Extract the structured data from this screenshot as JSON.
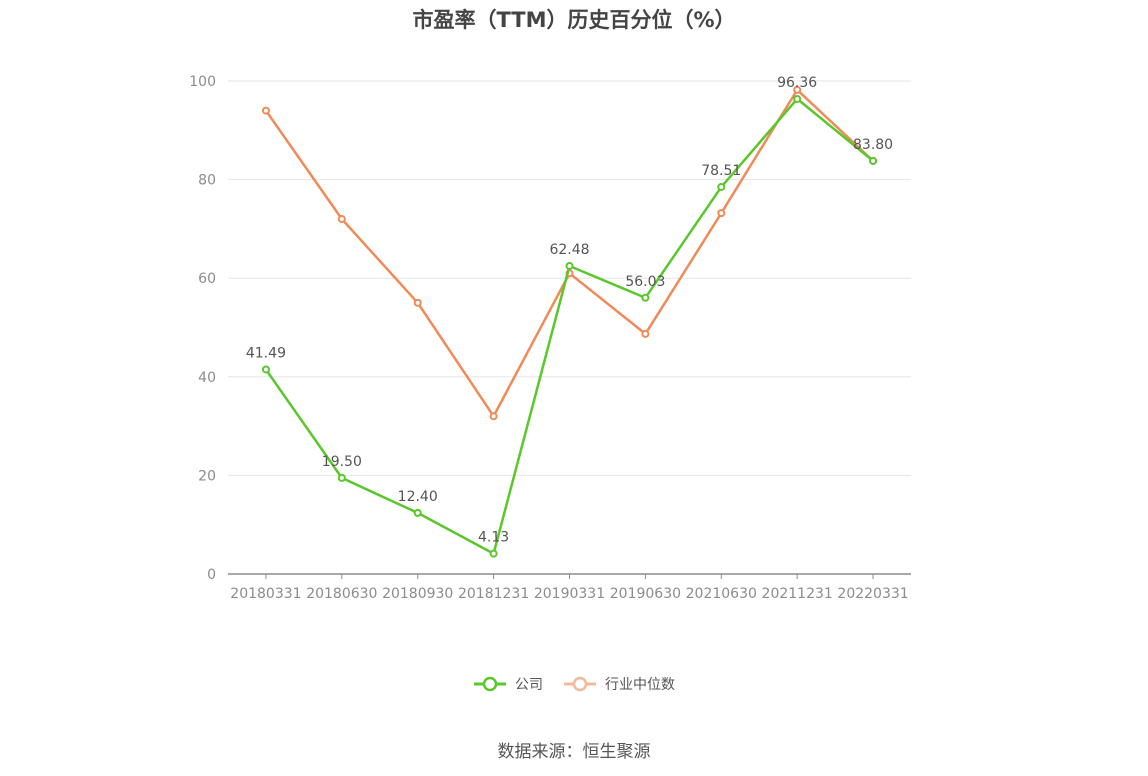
{
  "chart_data": {
    "type": "line",
    "title": "市盈率（TTM）历史百分位（%）",
    "categories": [
      "20180331",
      "20180630",
      "20180930",
      "20181231",
      "20190331",
      "20190630",
      "20210630",
      "20211231",
      "20220331"
    ],
    "series": [
      {
        "name": "公司",
        "color": "#5ac72a",
        "values": [
          41.49,
          19.5,
          12.4,
          4.13,
          62.48,
          56.03,
          78.51,
          96.36,
          83.8
        ],
        "labels": [
          "41.49",
          "19.50",
          "12.40",
          "4.13",
          "62.48",
          "56.03",
          "78.51",
          "96.36",
          "83.80"
        ]
      },
      {
        "name": "行业中位数",
        "color": "#f08a58",
        "values": [
          94.0,
          72.0,
          55.0,
          32.0,
          61.0,
          48.7,
          73.2,
          98.2,
          83.8
        ]
      }
    ],
    "ylim": [
      0,
      100
    ],
    "yticks": [
      "0",
      "20",
      "40",
      "60",
      "80",
      "100"
    ],
    "grid": true,
    "legend_position": "bottom"
  },
  "source": "数据来源：恒生聚源"
}
